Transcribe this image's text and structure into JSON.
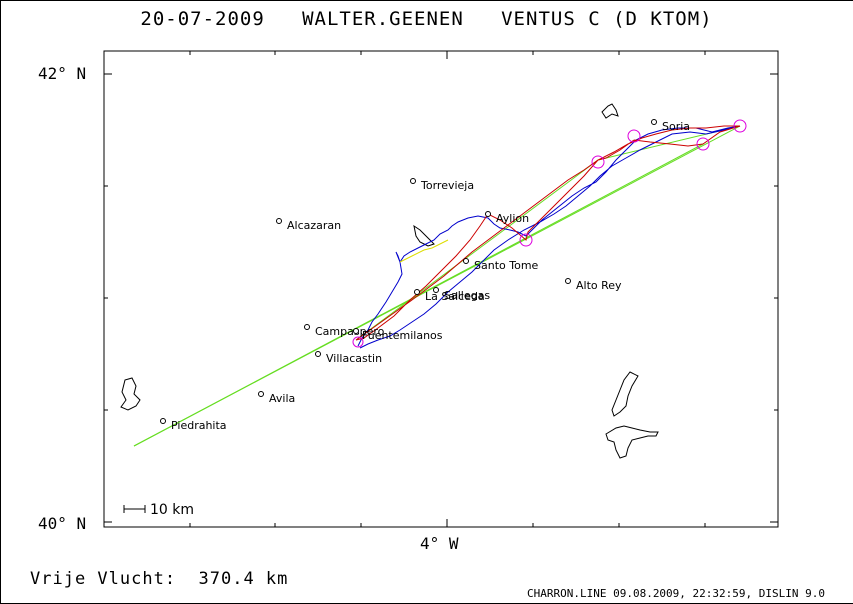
{
  "header": {
    "title": "20-07-2009   WALTER.GEENEN   VENTUS C (D KTOM)"
  },
  "axes": {
    "lat_top": "42° N",
    "lat_bottom": "40° N",
    "lon_center": "4° W"
  },
  "scale": {
    "label": "10 km"
  },
  "places": [
    {
      "name": "Soria"
    },
    {
      "name": "Torrevieja"
    },
    {
      "name": "Alcazaran"
    },
    {
      "name": "Aylion"
    },
    {
      "name": "Santo Tome"
    },
    {
      "name": "Alto Rey"
    },
    {
      "name": "La Salceda"
    },
    {
      "name": "Sallegas"
    },
    {
      "name": "Campaspero"
    },
    {
      "name": "Fuentemilanos"
    },
    {
      "name": "Villacastin"
    },
    {
      "name": "Avila"
    },
    {
      "name": "Piedrahita"
    }
  ],
  "colors": {
    "task_line": "#66dd22",
    "track_blue": "#0000cc",
    "track_red": "#cc0000",
    "track_yellow": "#dddd00",
    "turnpoint_circle": "#dd00dd"
  },
  "summary": {
    "text": "Vrije Vlucht:  370.4 km"
  },
  "footer": {
    "text": "CHARRON.LINE 09.08.2009, 22:32:59, DISLIN 9.0"
  }
}
